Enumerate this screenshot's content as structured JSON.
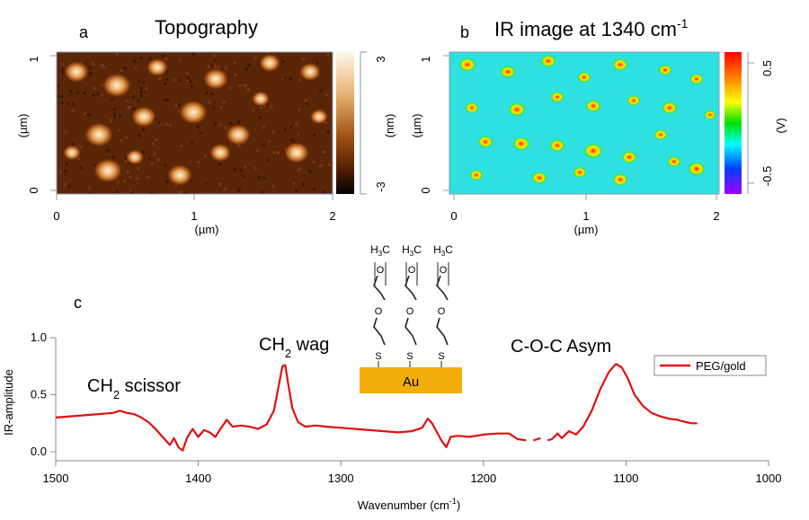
{
  "panel_a": {
    "label": "a",
    "title": "Topography",
    "x_ticks": [
      "0",
      "1",
      "2"
    ],
    "x_unit": "(µm)",
    "y_ticks": [
      "1",
      "0"
    ],
    "y_unit": "(µm)",
    "colorbar_ticks": [
      "3",
      "-3"
    ],
    "colorbar_unit": "(nm)"
  },
  "panel_b": {
    "label": "b",
    "title_main": "IR image at 1340 cm",
    "title_sup": "-1",
    "x_ticks": [
      "0",
      "1",
      "2"
    ],
    "x_unit": "(µm)",
    "y_ticks": [
      "1",
      "0"
    ],
    "y_unit": "(µm)",
    "colorbar_ticks": [
      "0.5",
      "-0.5"
    ],
    "colorbar_unit": "(V)"
  },
  "panel_c": {
    "label": "c",
    "ylabel": "IR-amplitude",
    "xlabel_main": "Wavenumber (cm",
    "xlabel_sup": "-1",
    "xlabel_end": ")",
    "legend": "PEG/gold",
    "annotations": {
      "scissor": {
        "main": "CH",
        "sub": "2",
        "rest": " scissor"
      },
      "wag": {
        "main": "CH",
        "sub": "2",
        "rest": " wag"
      },
      "coc": "C-O-C Asym"
    },
    "molecule": {
      "substrate": "Au",
      "top_group": "H",
      "top_sub": "3",
      "top_c": "C",
      "atom_o": "O",
      "atom_s": "S"
    }
  },
  "colors": {
    "line": "#e01010",
    "substrate": "#f2ad0b",
    "ir_background": "#2ee0e0",
    "topo_dark": "#3a1a05"
  },
  "chart_data": [
    {
      "type": "heatmap",
      "title": "Topography",
      "xlabel": "(µm)",
      "ylabel": "(µm)",
      "xlim": [
        0,
        2
      ],
      "ylim": [
        0,
        1
      ],
      "colorbar_label": "(nm)",
      "colorbar_range": [
        -3,
        3
      ],
      "colormap": "dark brown to white"
    },
    {
      "type": "heatmap",
      "title": "IR image at 1340 cm-1",
      "xlabel": "(µm)",
      "ylabel": "(µm)",
      "xlim": [
        0,
        2
      ],
      "ylim": [
        0,
        1
      ],
      "colorbar_label": "(V)",
      "colorbar_range": [
        -0.5,
        0.5
      ],
      "colormap": "rainbow"
    },
    {
      "type": "line",
      "xlabel": "Wavenumber (cm-1)",
      "ylabel": "IR-amplitude",
      "xlim": [
        1500,
        1000
      ],
      "ylim": [
        0,
        1.0
      ],
      "x_ticks": [
        1500,
        1400,
        1300,
        1200,
        1100,
        1000
      ],
      "y_ticks": [
        0.0,
        0.5,
        1.0
      ],
      "legend_position": "top-right",
      "series": [
        {
          "name": "PEG/gold",
          "segments": [
            [
              [
                1500,
                0.3
              ],
              [
                1490,
                0.31
              ],
              [
                1480,
                0.32
              ],
              [
                1470,
                0.33
              ],
              [
                1460,
                0.34
              ],
              [
                1455,
                0.36
              ],
              [
                1450,
                0.34
              ],
              [
                1445,
                0.33
              ],
              [
                1440,
                0.3
              ],
              [
                1435,
                0.26
              ],
              [
                1430,
                0.2
              ],
              [
                1425,
                0.13
              ],
              [
                1420,
                0.06
              ],
              [
                1417,
                0.12
              ],
              [
                1414,
                0.04
              ],
              [
                1411,
                0.01
              ],
              [
                1408,
                0.12
              ],
              [
                1404,
                0.2
              ],
              [
                1400,
                0.13
              ],
              [
                1396,
                0.19
              ],
              [
                1392,
                0.17
              ],
              [
                1388,
                0.13
              ],
              [
                1385,
                0.19
              ],
              [
                1380,
                0.28
              ],
              [
                1376,
                0.22
              ],
              [
                1370,
                0.23
              ],
              [
                1364,
                0.22
              ],
              [
                1358,
                0.2
              ],
              [
                1352,
                0.24
              ],
              [
                1347,
                0.36
              ],
              [
                1344,
                0.55
              ],
              [
                1341,
                0.75
              ],
              [
                1339,
                0.76
              ],
              [
                1337,
                0.6
              ],
              [
                1334,
                0.38
              ],
              [
                1330,
                0.26
              ],
              [
                1325,
                0.22
              ],
              [
                1318,
                0.23
              ],
              [
                1310,
                0.22
              ],
              [
                1300,
                0.21
              ],
              [
                1290,
                0.2
              ],
              [
                1280,
                0.19
              ],
              [
                1270,
                0.18
              ],
              [
                1260,
                0.17
              ],
              [
                1250,
                0.18
              ],
              [
                1243,
                0.21
              ],
              [
                1239,
                0.29
              ],
              [
                1236,
                0.25
              ],
              [
                1233,
                0.18
              ],
              [
                1229,
                0.09
              ],
              [
                1226,
                0.04
              ],
              [
                1223,
                0.13
              ],
              [
                1218,
                0.14
              ],
              [
                1210,
                0.13
              ],
              [
                1200,
                0.15
              ],
              [
                1190,
                0.16
              ],
              [
                1182,
                0.16
              ],
              [
                1176,
                0.11
              ],
              [
                1170,
                0.1
              ]
            ],
            [
              [
                1165,
                0.1
              ],
              [
                1162,
                0.11
              ],
              [
                1160,
                0.12
              ]
            ],
            [
              [
                1155,
                0.1
              ],
              [
                1152,
                0.11
              ],
              [
                1148,
                0.16
              ],
              [
                1145,
                0.12
              ],
              [
                1140,
                0.18
              ],
              [
                1135,
                0.15
              ],
              [
                1130,
                0.22
              ],
              [
                1124,
                0.36
              ],
              [
                1118,
                0.55
              ],
              [
                1112,
                0.7
              ],
              [
                1107,
                0.77
              ],
              [
                1103,
                0.74
              ],
              [
                1099,
                0.65
              ],
              [
                1094,
                0.5
              ],
              [
                1088,
                0.4
              ],
              [
                1082,
                0.34
              ],
              [
                1076,
                0.31
              ],
              [
                1070,
                0.29
              ],
              [
                1064,
                0.28
              ],
              [
                1058,
                0.26
              ],
              [
                1054,
                0.25
              ],
              [
                1050,
                0.25
              ]
            ]
          ]
        }
      ]
    }
  ]
}
